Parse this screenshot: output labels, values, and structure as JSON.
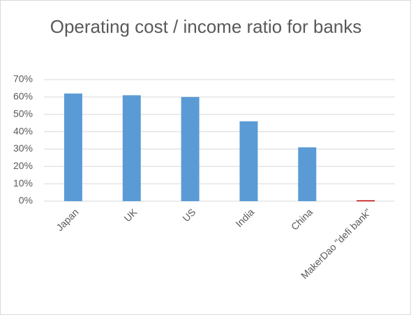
{
  "chart_data": {
    "type": "bar",
    "title": "Operating cost / income ratio for banks",
    "categories": [
      "Japan",
      "UK",
      "US",
      "India",
      "China",
      "MakerDao \"defi bank\""
    ],
    "values": [
      62,
      61,
      60,
      46,
      31,
      0.5
    ],
    "colors": [
      "#5b9bd5",
      "#5b9bd5",
      "#5b9bd5",
      "#5b9bd5",
      "#5b9bd5",
      "#c00000"
    ],
    "ylim": [
      0,
      70
    ],
    "yticks": [
      {
        "value": 0,
        "label": "0%"
      },
      {
        "value": 10,
        "label": "10%"
      },
      {
        "value": 20,
        "label": "20%"
      },
      {
        "value": 30,
        "label": "30%"
      },
      {
        "value": 40,
        "label": "40%"
      },
      {
        "value": 50,
        "label": "50%"
      },
      {
        "value": 60,
        "label": "60%"
      },
      {
        "value": 70,
        "label": "70%"
      }
    ],
    "grid": true
  }
}
